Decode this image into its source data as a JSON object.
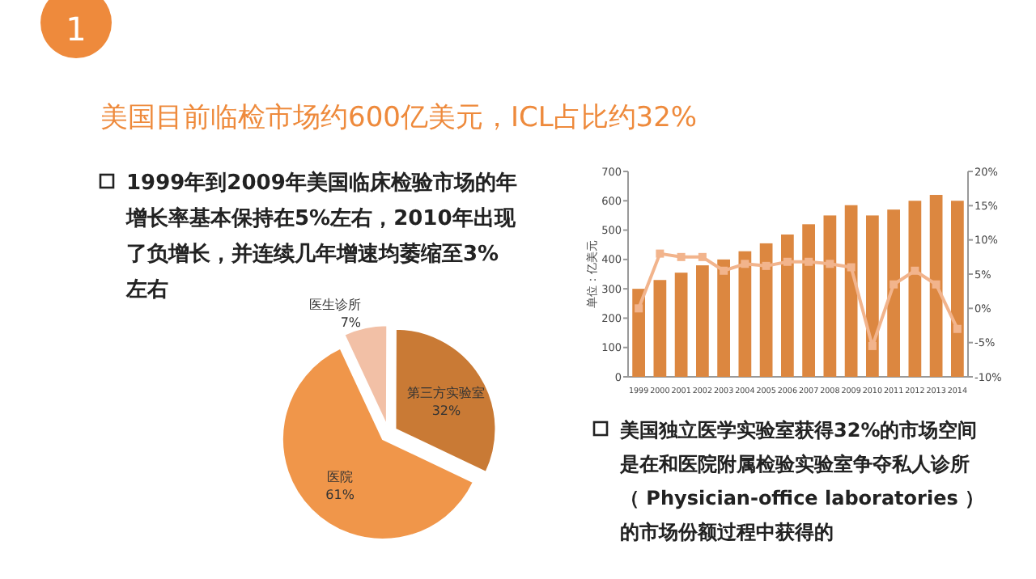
{
  "chart_data": [
    {
      "type": "pie",
      "title": "美国目前临检市场约600亿美元，ICL占比约32%",
      "annotations": [
        "1",
        "1999年到2009年美国临床检验市场的年增长率基本保持在5%左右，2010年出现了负增长，并连续几年增速均萎缩至3%左右"
      ],
      "categories": [
        "医生诊所",
        "第三方实验室",
        "医院"
      ],
      "values": [
        7,
        32,
        61
      ],
      "colors": [
        "#f2c0a6",
        "#c97a35",
        "#f0964a"
      ],
      "value_labels": [
        "7%",
        "32%",
        "61%"
      ]
    },
    {
      "type": "bar",
      "categories": [
        "1999",
        "2000",
        "2001",
        "2002",
        "2003",
        "2004",
        "2005",
        "2006",
        "2007",
        "2008",
        "2009",
        "2010",
        "2011",
        "2012",
        "2013",
        "2014"
      ],
      "ylabel": "单位：亿美元",
      "annotations": [
        "美国独立医学实验室获得32%的市场空间是在和医院附属检验实验室争夺私人诊所（ Physician-office  laboratories ）的市场份额过程中获得的"
      ],
      "series": [
        {
          "type": "bar",
          "color": "#dc8740",
          "values": [
            300,
            330,
            355,
            380,
            400,
            428,
            455,
            485,
            520,
            550,
            585,
            550,
            570,
            600,
            620,
            600
          ]
        },
        {
          "type": "line",
          "axis": "y2",
          "color": "#f2b48c",
          "marker": "square",
          "values": [
            0,
            8,
            7.5,
            7.5,
            5.5,
            6.5,
            6.2,
            6.8,
            6.8,
            6.5,
            6,
            -5.5,
            3.5,
            5.5,
            3.5,
            -3
          ]
        }
      ],
      "ylim": [
        0,
        700
      ],
      "yticks": [
        0,
        100,
        200,
        300,
        400,
        500,
        600,
        700
      ],
      "y2lim": [
        -10,
        20
      ],
      "y2ticks": [
        {
          "value": -10,
          "label": "-10%"
        },
        {
          "value": -5,
          "label": "-5%"
        },
        {
          "value": 0,
          "label": "0%"
        },
        {
          "value": 5,
          "label": "5%"
        },
        {
          "value": 10,
          "label": "10%"
        },
        {
          "value": 15,
          "label": "15%"
        },
        {
          "value": 20,
          "label": "20%"
        }
      ],
      "grid": false
    }
  ]
}
